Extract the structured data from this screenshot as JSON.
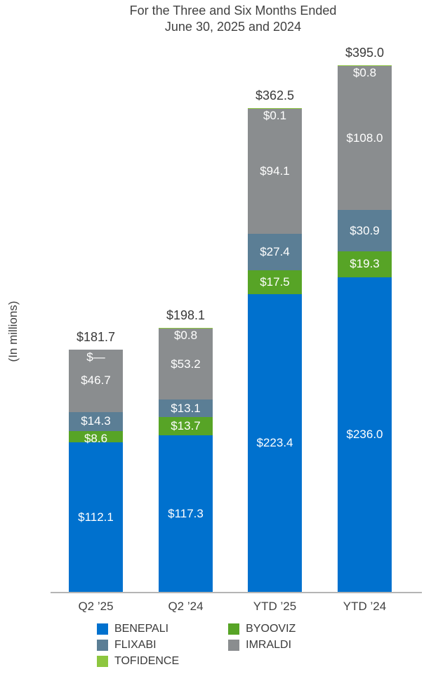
{
  "title": {
    "line1": "For the Three and Six Months Ended",
    "line2": "June 30, 2025 and 2024"
  },
  "y_axis_label": "(In millions)",
  "chart_data": {
    "type": "bar",
    "stacked": true,
    "categories": [
      "Q2 ’25",
      "Q2 ’24",
      "YTD ’25",
      "YTD ’24"
    ],
    "totals": [
      "$181.7",
      "$198.1",
      "$362.5",
      "$395.0"
    ],
    "total_values": [
      181.7,
      198.1,
      362.5,
      395.0
    ],
    "ylim": [
      0,
      400
    ],
    "stack_order_bottom_to_top": [
      "BENEPALI",
      "BYOOVIZ",
      "FLIXABI",
      "IMRALDI",
      "TOFIDENCE"
    ],
    "series": [
      {
        "name": "BENEPALI",
        "color": "#0071CE",
        "values": [
          112.1,
          117.3,
          223.4,
          236.0
        ],
        "labels": [
          "$112.1",
          "$117.3",
          "$223.4",
          "$236.0"
        ]
      },
      {
        "name": "BYOOVIZ",
        "color": "#57A426",
        "values": [
          8.6,
          13.7,
          17.5,
          19.3
        ],
        "labels": [
          "$8.6",
          "$13.7",
          "$17.5",
          "$19.3"
        ]
      },
      {
        "name": "FLIXABI",
        "color": "#5B7E95",
        "values": [
          14.3,
          13.1,
          27.4,
          30.9
        ],
        "labels": [
          "$14.3",
          "$13.1",
          "$27.4",
          "$30.9"
        ]
      },
      {
        "name": "IMRALDI",
        "color": "#8A8D8F",
        "values": [
          46.7,
          53.2,
          94.1,
          108.0
        ],
        "labels": [
          "$46.7",
          "$53.2",
          "$94.1",
          "$108.0"
        ]
      },
      {
        "name": "TOFIDENCE",
        "color": "#8DC63F",
        "values": [
          0,
          0.8,
          0.1,
          0.8
        ],
        "labels": [
          "$—",
          "$0.8",
          "$0.1",
          "$0.8"
        ]
      }
    ],
    "legend": {
      "columns": [
        [
          "BENEPALI",
          "FLIXABI",
          "TOFIDENCE"
        ],
        [
          "BYOOVIZ",
          "IMRALDI"
        ]
      ]
    }
  }
}
